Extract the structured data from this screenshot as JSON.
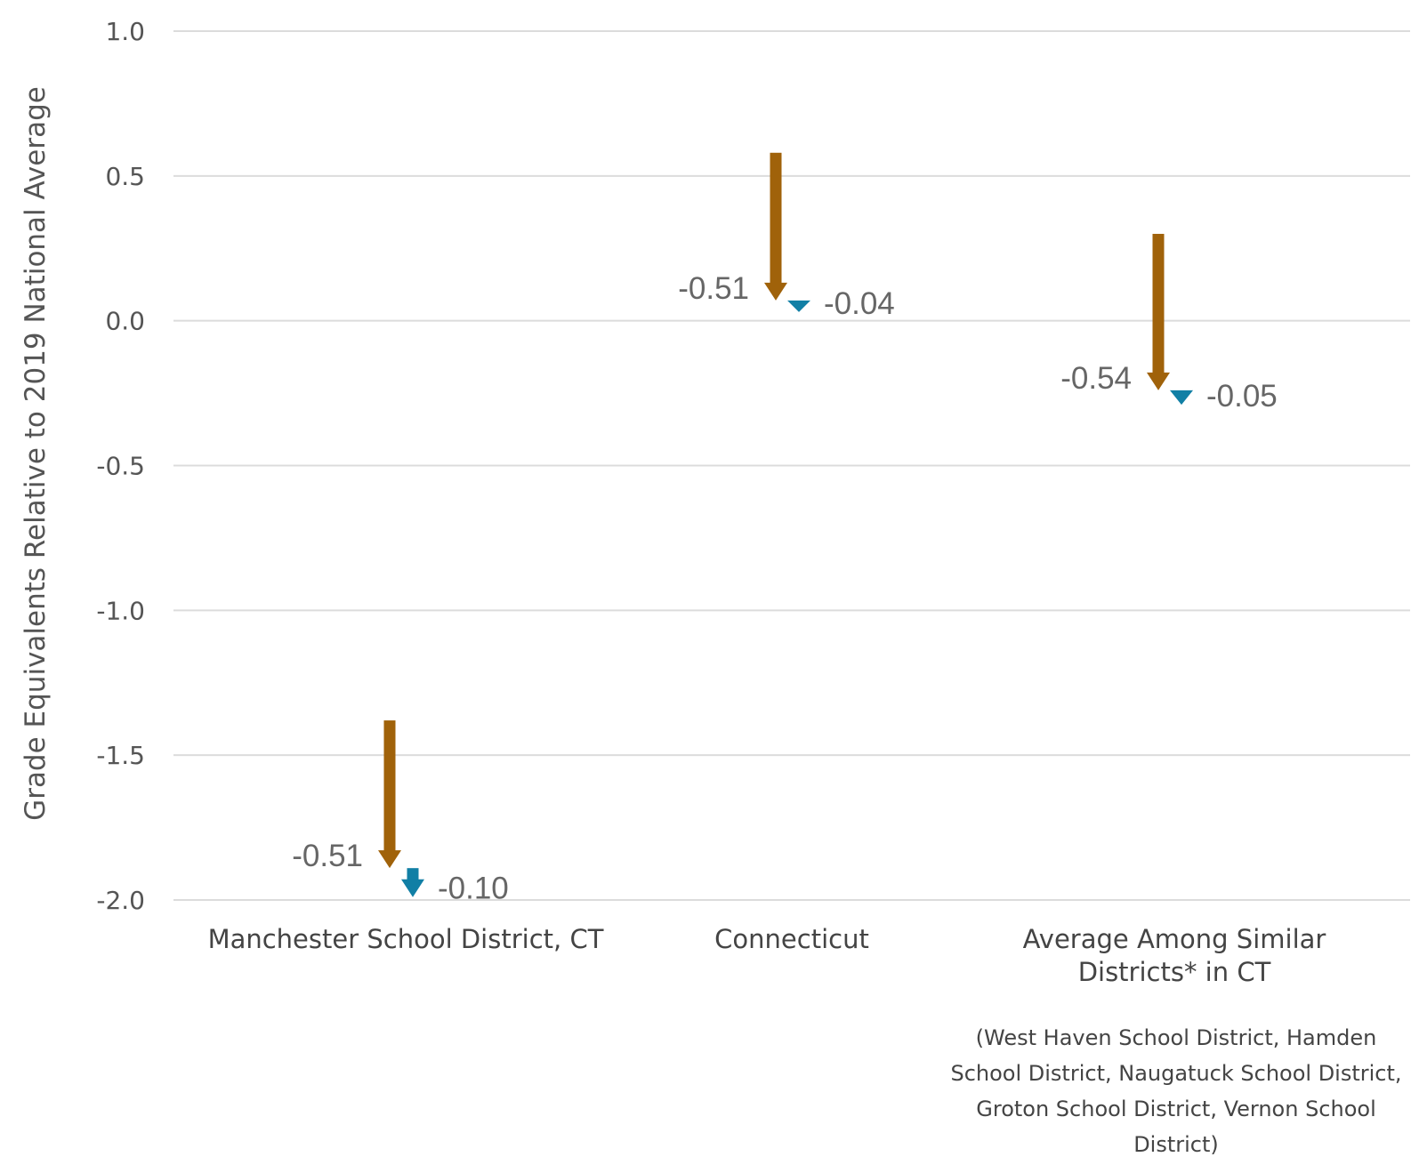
{
  "chart_data": {
    "type": "arrow",
    "ylabel": "Grade Equivalents Relative to 2019 National Average",
    "ylim": [
      -2.0,
      1.0
    ],
    "yticks": [
      "1.0",
      "0.5",
      "0.0",
      "-0.5",
      "-1.0",
      "-1.5",
      "-2.0"
    ],
    "grid": true,
    "colors": {
      "first_change": "#A0620A",
      "second_change": "#117FA5"
    },
    "categories": [
      {
        "label_lines": [
          "Manchester School District, CT"
        ],
        "note_lines": [],
        "start": -1.38,
        "first_change": -0.51,
        "first_change_label": "-0.51",
        "second_change": -0.1,
        "second_change_label": "-0.10"
      },
      {
        "label_lines": [
          "Connecticut"
        ],
        "note_lines": [],
        "start": 0.58,
        "first_change": -0.51,
        "first_change_label": "-0.51",
        "second_change": -0.04,
        "second_change_label": "-0.04"
      },
      {
        "label_lines": [
          "Average Among Similar",
          "Districts* in CT"
        ],
        "note_lines": [
          "(West Haven School District, Hamden",
          "School District, Naugatuck School District,",
          "Groton School District, Vernon School",
          "District)"
        ],
        "start": 0.3,
        "first_change": -0.54,
        "first_change_label": "-0.54",
        "second_change": -0.05,
        "second_change_label": "-0.05"
      }
    ]
  }
}
